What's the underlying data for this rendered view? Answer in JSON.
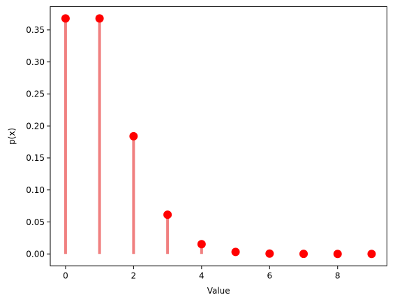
{
  "chart_data": {
    "type": "stem",
    "title": "",
    "xlabel": "Value",
    "ylabel": "p(x)",
    "xlim": [
      -0.45,
      9.45
    ],
    "ylim": [
      -0.0185,
      0.3865
    ],
    "xticks": [
      0,
      2,
      4,
      6,
      8
    ],
    "xtick_labels": [
      "0",
      "2",
      "4",
      "6",
      "8"
    ],
    "yticks": [
      0.0,
      0.05,
      0.1,
      0.15,
      0.2,
      0.25,
      0.3,
      0.35
    ],
    "ytick_labels": [
      "0.00",
      "0.05",
      "0.10",
      "0.15",
      "0.20",
      "0.25",
      "0.30",
      "0.35"
    ],
    "grid": false,
    "legend": false,
    "x": [
      0,
      1,
      2,
      3,
      4,
      5,
      6,
      7,
      8,
      9
    ],
    "values": [
      0.3679,
      0.3679,
      0.1839,
      0.0613,
      0.0153,
      0.0031,
      0.0005,
      0.0001,
      0.0,
      0.0
    ],
    "colors": {
      "stem": "#f08080",
      "marker": "#ff0000"
    }
  }
}
